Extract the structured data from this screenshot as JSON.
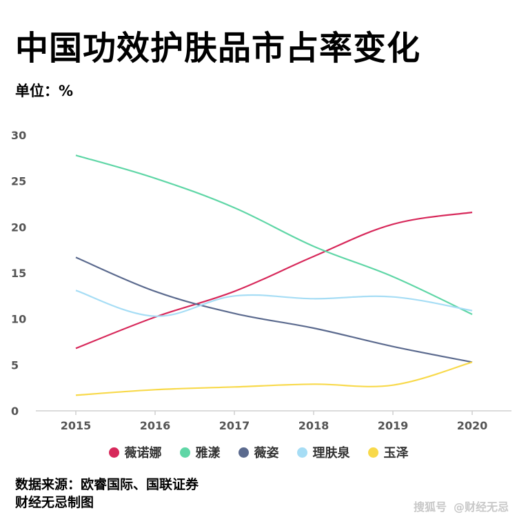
{
  "title": "中国功效护肤品市占率变化",
  "unit_label": "单位：%",
  "source": {
    "line1": "数据来源：欧睿国际、国联证券",
    "line2": "财经无忌制图"
  },
  "watermark": {
    "brand": "搜狐号",
    "account": "@财经无忌"
  },
  "chart_data": {
    "type": "line",
    "title": "中国功效护肤品市占率变化",
    "ylabel": "单位：%",
    "xlabel": "",
    "x": [
      "2015",
      "2016",
      "2017",
      "2018",
      "2019",
      "2020"
    ],
    "ylim": [
      0,
      30
    ],
    "yticks": [
      0,
      5,
      10,
      15,
      20,
      25,
      30
    ],
    "grid": false,
    "legend_position": "bottom",
    "series": [
      {
        "name": "薇诺娜",
        "color": "#d7285a",
        "values": [
          6.8,
          10.2,
          13.0,
          16.8,
          20.3,
          21.6
        ]
      },
      {
        "name": "雅漾",
        "color": "#5fd6a6",
        "values": [
          27.8,
          25.3,
          22.1,
          17.9,
          14.6,
          10.5
        ]
      },
      {
        "name": "薇姿",
        "color": "#5b6a8e",
        "values": [
          16.7,
          13.0,
          10.6,
          9.0,
          7.0,
          5.3
        ]
      },
      {
        "name": "理肤泉",
        "color": "#a6ddf5",
        "values": [
          13.1,
          10.3,
          12.5,
          12.2,
          12.4,
          10.9
        ]
      },
      {
        "name": "玉泽",
        "color": "#f8d94a",
        "values": [
          1.7,
          2.3,
          2.6,
          2.9,
          2.8,
          5.3
        ]
      }
    ]
  }
}
